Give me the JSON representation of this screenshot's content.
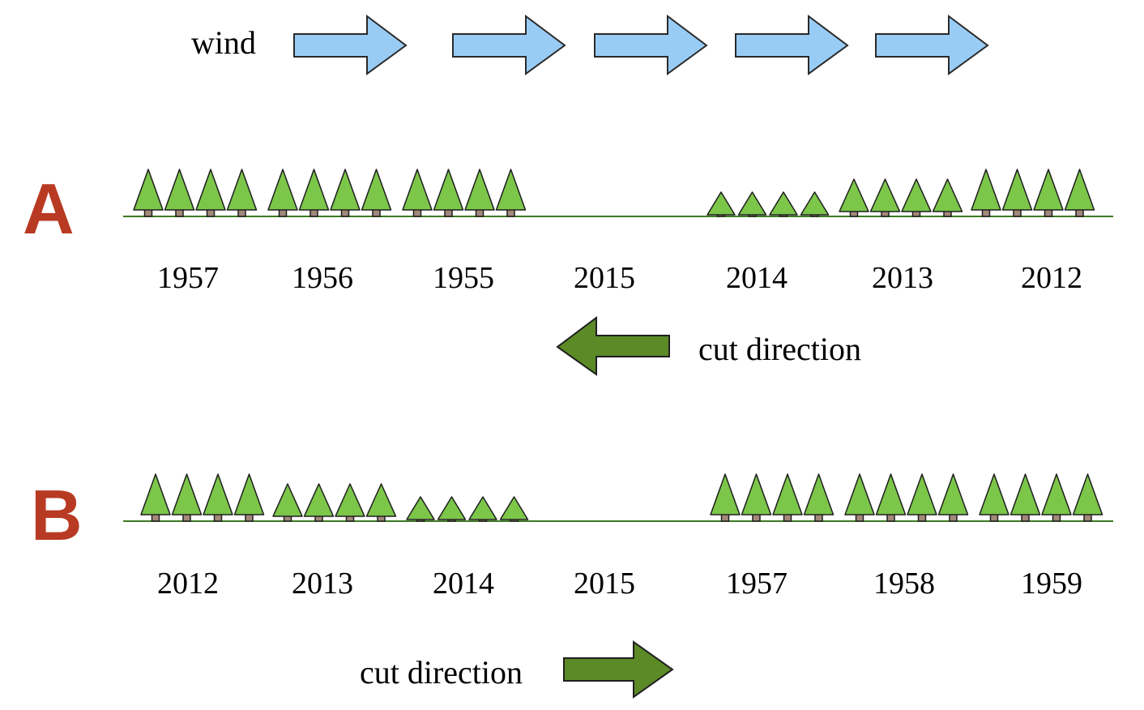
{
  "wind": {
    "label": "wind",
    "arrow_count": 5,
    "arrow_fill": "#99ccf5",
    "arrow_stroke": "#2a2a2a"
  },
  "colors": {
    "tree_fill": "#7cc64a",
    "tree_stroke": "#1f1f1f",
    "trunk_fill": "#a2897a",
    "ground_line": "#3d7a22",
    "cut_arrow_fill": "#5b8a26",
    "section_letter": "#b83a22"
  },
  "panels": [
    {
      "letter": "A",
      "years": [
        "1957",
        "1956",
        "1955",
        "2015",
        "2014",
        "2013",
        "2012"
      ],
      "tree_sizes": [
        "large",
        "large",
        "large",
        "none",
        "small",
        "medium",
        "large"
      ],
      "trees_per_stand": 4,
      "cut_direction": {
        "label": "cut direction",
        "arrow": "left"
      }
    },
    {
      "letter": "B",
      "years": [
        "2012",
        "2013",
        "2014",
        "2015",
        "1957",
        "1958",
        "1959"
      ],
      "tree_sizes": [
        "large",
        "medium",
        "small",
        "none",
        "large",
        "large",
        "large"
      ],
      "trees_per_stand": 4,
      "cut_direction": {
        "label": "cut direction",
        "arrow": "right"
      }
    }
  ]
}
